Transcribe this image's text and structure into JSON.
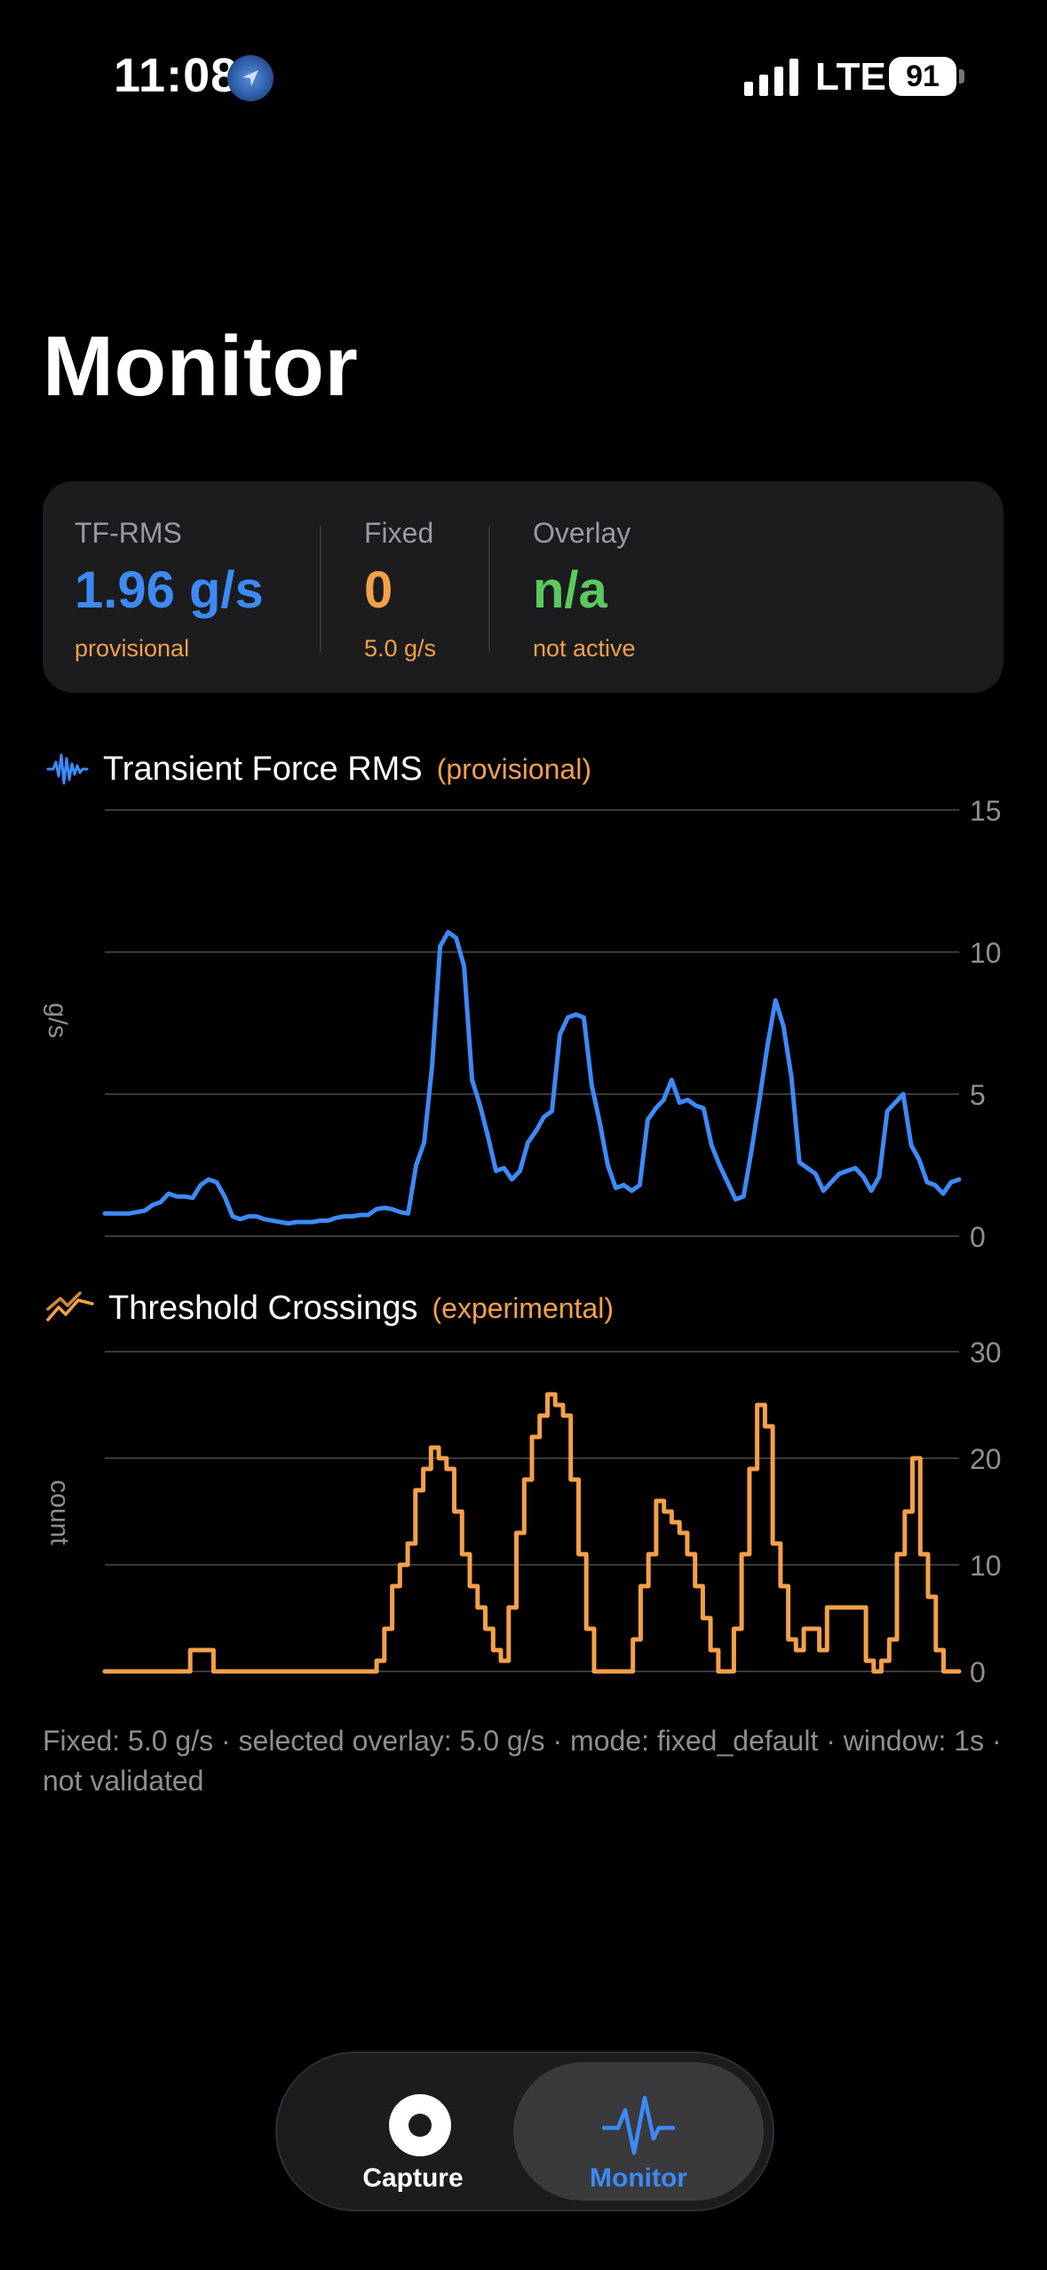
{
  "status_bar": {
    "time": "11:08",
    "network": "LTE",
    "battery": "91"
  },
  "page": {
    "title": "Monitor"
  },
  "summary": {
    "tf_rms": {
      "label": "TF-RMS",
      "value": "1.96 g/s",
      "sub": "provisional"
    },
    "fixed": {
      "label": "Fixed",
      "value": "0",
      "sub": "5.0 g/s"
    },
    "overlay": {
      "label": "Overlay",
      "value": "n/a",
      "sub": "not active"
    }
  },
  "colors": {
    "blue": "#3d8af7",
    "orange": "#f4a04a",
    "green": "#5cc860",
    "grid": "#3a3a3c",
    "axis_text": "#8e8e93"
  },
  "chart_data": [
    {
      "type": "line",
      "title": "Transient Force RMS",
      "subtitle": "(provisional)",
      "ylabel": "g/s",
      "ylim": [
        0,
        15
      ],
      "yticks": [
        "15",
        "10",
        "5",
        "0"
      ],
      "grid": true,
      "series": [
        {
          "color": "#3d8af7",
          "values": [
            0.8,
            0.8,
            0.8,
            0.8,
            0.85,
            0.9,
            1.1,
            1.2,
            1.5,
            1.4,
            1.4,
            1.35,
            1.8,
            2.0,
            1.9,
            1.4,
            0.7,
            0.6,
            0.7,
            0.7,
            0.6,
            0.55,
            0.5,
            0.45,
            0.5,
            0.5,
            0.5,
            0.55,
            0.55,
            0.65,
            0.7,
            0.7,
            0.75,
            0.75,
            0.95,
            1.0,
            0.95,
            0.85,
            0.8,
            2.5,
            3.3,
            6.0,
            10.2,
            10.7,
            10.5,
            9.5,
            5.5,
            4.6,
            3.5,
            2.3,
            2.4,
            2.0,
            2.3,
            3.3,
            3.7,
            4.2,
            4.4,
            7.1,
            7.7,
            7.8,
            7.7,
            5.3,
            4.0,
            2.5,
            1.7,
            1.8,
            1.6,
            1.8,
            4.1,
            4.5,
            4.8,
            5.5,
            4.7,
            4.8,
            4.6,
            4.5,
            3.2,
            2.5,
            1.9,
            1.3,
            1.4,
            3.0,
            4.8,
            6.7,
            8.3,
            7.4,
            5.6,
            2.6,
            2.4,
            2.2,
            1.6,
            1.9,
            2.2,
            2.3,
            2.4,
            2.1,
            1.6,
            2.1,
            4.4,
            4.7,
            5.0,
            3.2,
            2.7,
            1.9,
            1.8,
            1.5,
            1.9,
            2.0
          ]
        }
      ]
    },
    {
      "type": "line",
      "title": "Threshold Crossings",
      "subtitle": "(experimental)",
      "ylabel": "count",
      "ylim": [
        0,
        30
      ],
      "yticks": [
        "30",
        "20",
        "10",
        "0"
      ],
      "grid": true,
      "series": [
        {
          "color": "#f4a04a",
          "step": true,
          "values": [
            0,
            0,
            0,
            0,
            0,
            0,
            0,
            0,
            0,
            0,
            0,
            2,
            2,
            2,
            0,
            0,
            0,
            0,
            0,
            0,
            0,
            0,
            0,
            0,
            0,
            0,
            0,
            0,
            0,
            0,
            0,
            0,
            0,
            0,
            0,
            1,
            4,
            8,
            10,
            12,
            17,
            19,
            21,
            20,
            19,
            15,
            11,
            8,
            6,
            4,
            2,
            1,
            6,
            13,
            18,
            22,
            24,
            26,
            25,
            24,
            18,
            11,
            4,
            0,
            0,
            0,
            0,
            0,
            3,
            8,
            11,
            16,
            15,
            14,
            13,
            11,
            8,
            5,
            2,
            0,
            0,
            4,
            11,
            19,
            25,
            23,
            12,
            8,
            3,
            2,
            4,
            4,
            2,
            6,
            6,
            6,
            6,
            6,
            1,
            0,
            1,
            3,
            11,
            15,
            20,
            11,
            7,
            2,
            0,
            0,
            0
          ]
        }
      ]
    }
  ],
  "footnote": "Fixed: 5.0 g/s · selected overlay: 5.0 g/s · mode: fixed_default · window: 1s · not validated",
  "tabs": {
    "capture": "Capture",
    "monitor": "Monitor"
  }
}
